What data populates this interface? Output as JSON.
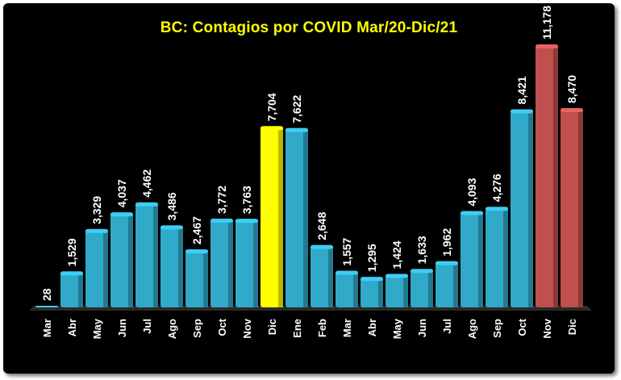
{
  "chart_data": {
    "type": "bar",
    "title": "BC: Contagios  por COVID Mar/20-Dic/21",
    "categories": [
      "Mar",
      "Abr",
      "May",
      "Jun",
      "Jul",
      "Ago",
      "Sep",
      "Oct",
      "Nov",
      "Dic",
      "Ene",
      "Feb",
      "Mar",
      "Abr",
      "May",
      "Jun",
      "Jul",
      "Ago",
      "Sep",
      "Oct",
      "Nov",
      "Dic"
    ],
    "values": [
      28,
      1529,
      3329,
      4037,
      4462,
      3486,
      2467,
      3772,
      3763,
      7704,
      7622,
      2648,
      1557,
      1295,
      1424,
      1633,
      1962,
      4093,
      4276,
      8421,
      11178,
      8470
    ],
    "value_labels": [
      "28",
      "1,529",
      "3,329",
      "4,037",
      "4,462",
      "3,486",
      "2,467",
      "3,772",
      "3,763",
      "7,704",
      "7,622",
      "2,648",
      "1,557",
      "1,295",
      "1,424",
      "1,633",
      "1,962",
      "4,093",
      "4,276",
      "8,421",
      "11,178",
      "8,470"
    ],
    "bar_colors": [
      "#31a9c8",
      "#31a9c8",
      "#31a9c8",
      "#31a9c8",
      "#31a9c8",
      "#31a9c8",
      "#31a9c8",
      "#31a9c8",
      "#31a9c8",
      "#ffff00",
      "#31a9c8",
      "#31a9c8",
      "#31a9c8",
      "#31a9c8",
      "#31a9c8",
      "#31a9c8",
      "#31a9c8",
      "#31a9c8",
      "#31a9c8",
      "#31a9c8",
      "#c0504d",
      "#c0504d"
    ],
    "xlabel": "",
    "ylabel": "",
    "ylim": [
      0,
      11500
    ],
    "grid": false,
    "legend": "none"
  }
}
